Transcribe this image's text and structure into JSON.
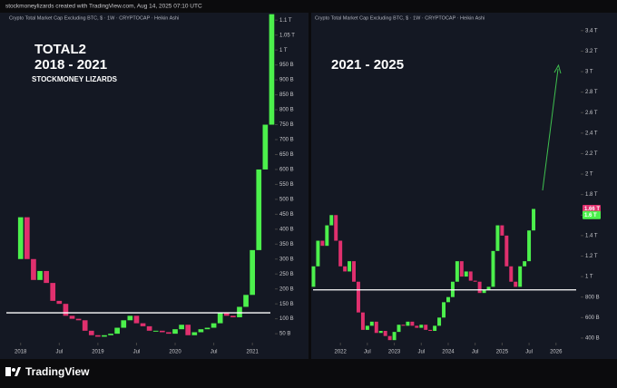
{
  "header": "stockmoneylizards created with TradingView.com, Aug 14, 2025 07:10 UTC",
  "footer": "TradingView",
  "chart_data": [
    {
      "type": "candlestick",
      "subtitle": "Crypto Total Market Cap Excluding BTC, $ · 1W · CRYPTOCAP · Heikin Ashi",
      "annotations": [
        "TOTAL2",
        "2018 - 2021",
        "STOCKMONEY LIZARDS"
      ],
      "up_color": "#4cf04c",
      "down_color": "#e0306e",
      "x": [
        "2018-01",
        "2018-02",
        "2018-03",
        "2018-04",
        "2018-05",
        "2018-06",
        "2018-07",
        "2018-08",
        "2018-09",
        "2018-10",
        "2018-11",
        "2018-12",
        "2019-01",
        "2019-02",
        "2019-03",
        "2019-04",
        "2019-05",
        "2019-06",
        "2019-07",
        "2019-08",
        "2019-09",
        "2019-10",
        "2019-11",
        "2019-12",
        "2020-01",
        "2020-02",
        "2020-03",
        "2020-04",
        "2020-05",
        "2020-06",
        "2020-07",
        "2020-08",
        "2020-09",
        "2020-10",
        "2020-11",
        "2020-12",
        "2021-01",
        "2021-02",
        "2021-03",
        "2021-04"
      ],
      "open": [
        300,
        440,
        300,
        230,
        260,
        220,
        160,
        150,
        110,
        100,
        95,
        60,
        45,
        40,
        45,
        50,
        70,
        95,
        110,
        85,
        75,
        60,
        60,
        55,
        50,
        65,
        80,
        45,
        55,
        65,
        70,
        85,
        120,
        110,
        105,
        140,
        180,
        330,
        600,
        750
      ],
      "close": [
        440,
        300,
        230,
        260,
        220,
        160,
        150,
        110,
        100,
        95,
        60,
        45,
        40,
        45,
        50,
        70,
        95,
        110,
        85,
        75,
        60,
        60,
        55,
        50,
        65,
        80,
        45,
        55,
        65,
        70,
        85,
        120,
        110,
        105,
        140,
        180,
        330,
        600,
        750,
        1120
      ],
      "xlim": [
        "2017-11",
        "2021-04"
      ],
      "xticks": [
        {
          "value": "2018-01",
          "label": "2018"
        },
        {
          "value": "2018-07",
          "label": "Jul"
        },
        {
          "value": "2019-01",
          "label": "2019"
        },
        {
          "value": "2019-07",
          "label": "Jul"
        },
        {
          "value": "2020-01",
          "label": "2020"
        },
        {
          "value": "2020-07",
          "label": "Jul"
        },
        {
          "value": "2021-01",
          "label": "2021"
        }
      ],
      "ylim": [
        20,
        1125
      ],
      "yticks": [
        {
          "value": 50,
          "label": "50 B"
        },
        {
          "value": 100,
          "label": "100 B"
        },
        {
          "value": 150,
          "label": "150 B"
        },
        {
          "value": 200,
          "label": "200 B"
        },
        {
          "value": 250,
          "label": "250 B"
        },
        {
          "value": 300,
          "label": "300 B"
        },
        {
          "value": 350,
          "label": "350 B"
        },
        {
          "value": 400,
          "label": "400 B"
        },
        {
          "value": 450,
          "label": "450 B"
        },
        {
          "value": 500,
          "label": "500 B"
        },
        {
          "value": 550,
          "label": "550 B"
        },
        {
          "value": 600,
          "label": "600 B"
        },
        {
          "value": 650,
          "label": "650 B"
        },
        {
          "value": 700,
          "label": "700 B"
        },
        {
          "value": 750,
          "label": "750 B"
        },
        {
          "value": 800,
          "label": "800 B"
        },
        {
          "value": 850,
          "label": "850 B"
        },
        {
          "value": 900,
          "label": "900 B"
        },
        {
          "value": 950,
          "label": "950 B"
        },
        {
          "value": 1000,
          "label": "1 T"
        },
        {
          "value": 1050,
          "label": "1.05 T"
        },
        {
          "value": 1100,
          "label": "1.1 T"
        }
      ],
      "hline": 120
    },
    {
      "type": "candlestick",
      "subtitle": "Crypto Total Market Cap Excluding BTC, $ · 1W · CRYPTOCAP · Heikin Ashi",
      "annotations": [
        "2021 - 2025"
      ],
      "up_color": "#4cf04c",
      "down_color": "#e0306e",
      "x": [
        "2021-07",
        "2021-08",
        "2021-09",
        "2021-10",
        "2021-11",
        "2021-12",
        "2022-01",
        "2022-02",
        "2022-03",
        "2022-04",
        "2022-05",
        "2022-06",
        "2022-07",
        "2022-08",
        "2022-09",
        "2022-10",
        "2022-11",
        "2022-12",
        "2023-01",
        "2023-02",
        "2023-03",
        "2023-04",
        "2023-05",
        "2023-06",
        "2023-07",
        "2023-08",
        "2023-09",
        "2023-10",
        "2023-11",
        "2023-12",
        "2024-01",
        "2024-02",
        "2024-03",
        "2024-04",
        "2024-05",
        "2024-06",
        "2024-07",
        "2024-08",
        "2024-09",
        "2024-10",
        "2024-11",
        "2024-12",
        "2025-01",
        "2025-02",
        "2025-03",
        "2025-04",
        "2025-05",
        "2025-06",
        "2025-07",
        "2025-08"
      ],
      "open": [
        900,
        1100,
        1350,
        1300,
        1500,
        1600,
        1350,
        1100,
        1050,
        1150,
        950,
        650,
        480,
        520,
        560,
        450,
        470,
        420,
        380,
        460,
        530,
        520,
        560,
        520,
        500,
        530,
        480,
        470,
        520,
        600,
        750,
        800,
        950,
        1150,
        1000,
        1050,
        960,
        950,
        840,
        870,
        900,
        1250,
        1500,
        1400,
        1100,
        950,
        900,
        1100,
        1150,
        1450
      ],
      "close": [
        1100,
        1350,
        1300,
        1500,
        1600,
        1350,
        1100,
        1050,
        1150,
        950,
        650,
        480,
        520,
        560,
        450,
        470,
        420,
        380,
        460,
        530,
        520,
        560,
        520,
        500,
        530,
        480,
        470,
        520,
        600,
        750,
        800,
        950,
        1150,
        1000,
        1050,
        960,
        950,
        840,
        870,
        900,
        1250,
        1500,
        1400,
        1100,
        950,
        900,
        1100,
        1150,
        1450,
        1660
      ],
      "xlim": [
        "2021-07",
        "2026-06"
      ],
      "xticks": [
        {
          "value": "2022-01",
          "label": "2022"
        },
        {
          "value": "2022-07",
          "label": "Jul"
        },
        {
          "value": "2023-01",
          "label": "2023"
        },
        {
          "value": "2023-07",
          "label": "Jul"
        },
        {
          "value": "2024-01",
          "label": "2024"
        },
        {
          "value": "2024-07",
          "label": "Jul"
        },
        {
          "value": "2025-01",
          "label": "2025"
        },
        {
          "value": "2025-07",
          "label": "Jul"
        },
        {
          "value": "2026-01",
          "label": "2026"
        }
      ],
      "ylim": [
        355,
        3575
      ],
      "yticks": [
        {
          "value": 400,
          "label": "400 B"
        },
        {
          "value": 600,
          "label": "600 B"
        },
        {
          "value": 800,
          "label": "800 B"
        },
        {
          "value": 1000,
          "label": "1 T"
        },
        {
          "value": 1200,
          "label": "1.2 T"
        },
        {
          "value": 1400,
          "label": "1.4 T"
        },
        {
          "value": 1600,
          "label": "1.6 T"
        },
        {
          "value": 1800,
          "label": "1.8 T"
        },
        {
          "value": 2000,
          "label": "2 T"
        },
        {
          "value": 2200,
          "label": "2.2 T"
        },
        {
          "value": 2400,
          "label": "2.4 T"
        },
        {
          "value": 2600,
          "label": "2.6 T"
        },
        {
          "value": 2800,
          "label": "2.8 T"
        },
        {
          "value": 3000,
          "label": "3 T"
        },
        {
          "value": 3200,
          "label": "3.2 T"
        },
        {
          "value": 3400,
          "label": "3.4 T"
        }
      ],
      "hline": 870,
      "price_tags": [
        {
          "value": 1660,
          "label": "1.66 T",
          "color": "#e0306e"
        },
        {
          "value": 1600,
          "label": "1.6 T",
          "color": "#4cf04c"
        }
      ]
    }
  ]
}
